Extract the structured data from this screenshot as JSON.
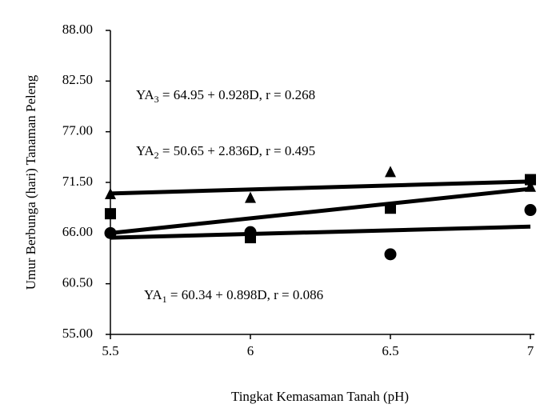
{
  "chart_data": {
    "type": "scatter",
    "y_label": "Umur Berbunga (hari) Tanaman Peleng",
    "x_label": "Tingkat Kemasaman Tanah (pH)",
    "x": [
      5.5,
      6,
      6.5,
      7
    ],
    "xlim": [
      5.5,
      7
    ],
    "xticks": [
      5.5,
      6,
      6.5,
      7
    ],
    "ylim": [
      55,
      88
    ],
    "yticks": [
      {
        "value": 55,
        "label": "55.00"
      },
      {
        "value": 60.5,
        "label": "60.50"
      },
      {
        "value": 66,
        "label": "66.00"
      },
      {
        "value": 71.5,
        "label": "71.50"
      },
      {
        "value": 77,
        "label": "77.00"
      },
      {
        "value": 82.5,
        "label": "82.50"
      },
      {
        "value": 88,
        "label": "88.00"
      }
    ],
    "series": [
      {
        "marker": "triangle",
        "color": "#000000",
        "values": [
          70.2,
          69.8,
          72.6,
          71.0
        ],
        "fit": [
          70.3,
          71.6
        ]
      },
      {
        "marker": "square",
        "color": "#000000",
        "values": [
          68.1,
          65.5,
          68.7,
          71.8
        ],
        "fit": [
          66.0,
          70.8
        ]
      },
      {
        "marker": "circle",
        "color": "#000000",
        "values": [
          66.0,
          66.1,
          63.7,
          68.5
        ],
        "fit": [
          65.5,
          66.7
        ]
      }
    ],
    "annotations": [
      {
        "text": "YA",
        "sub": "3",
        "rest": " = 64.95 + 0.928D, r = 0.268"
      },
      {
        "text": "YA",
        "sub": "2",
        "rest": " = 50.65 + 2.836D, r = 0.495"
      },
      {
        "text": "YA",
        "sub": "1",
        "rest": " = 60.34 + 0.898D, r = 0.086"
      }
    ]
  }
}
